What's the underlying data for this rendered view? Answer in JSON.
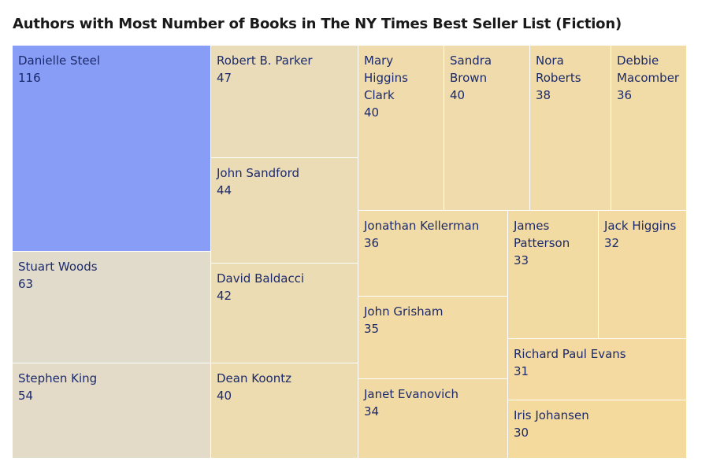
{
  "chart_data": {
    "type": "treemap",
    "title": "Authors with Most Number of Books in The NY Times Best Seller List (Fiction)",
    "highlight_color": "#879df6",
    "items": [
      {
        "name": "Danielle Steel",
        "value": 116,
        "color": "#879df6"
      },
      {
        "name": "Stuart Woods",
        "value": 63,
        "color": "#e1dbcc"
      },
      {
        "name": "Stephen King",
        "value": 54,
        "color": "#e3dbc8"
      },
      {
        "name": "Robert B. Parker",
        "value": 47,
        "color": "#eadcb8"
      },
      {
        "name": "John Sandford",
        "value": 44,
        "color": "#ebdcb6"
      },
      {
        "name": "David Baldacci",
        "value": 42,
        "color": "#ecdcb3"
      },
      {
        "name": "Dean Koontz",
        "value": 40,
        "color": "#eddcb0"
      },
      {
        "name": "Mary Higgins Clark",
        "value": 40,
        "color": "#efdbab"
      },
      {
        "name": "Sandra Brown",
        "value": 40,
        "color": "#efdbab"
      },
      {
        "name": "Nora Roberts",
        "value": 38,
        "color": "#f0dba9"
      },
      {
        "name": "Debbie Macomber",
        "value": 36,
        "color": "#f1dba6"
      },
      {
        "name": "Jonathan Kellerman",
        "value": 36,
        "color": "#f1dba6"
      },
      {
        "name": "James Patterson",
        "value": 33,
        "color": "#f2daa3"
      },
      {
        "name": "Jack Higgins",
        "value": 32,
        "color": "#f3daa2"
      },
      {
        "name": "John Grisham",
        "value": 35,
        "color": "#f2dba5"
      },
      {
        "name": "Janet Evanovich",
        "value": 34,
        "color": "#f2daa4"
      },
      {
        "name": "Richard Paul Evans",
        "value": 31,
        "color": "#f4daa0"
      },
      {
        "name": "Iris Johansen",
        "value": 30,
        "color": "#f5da9e"
      }
    ]
  }
}
